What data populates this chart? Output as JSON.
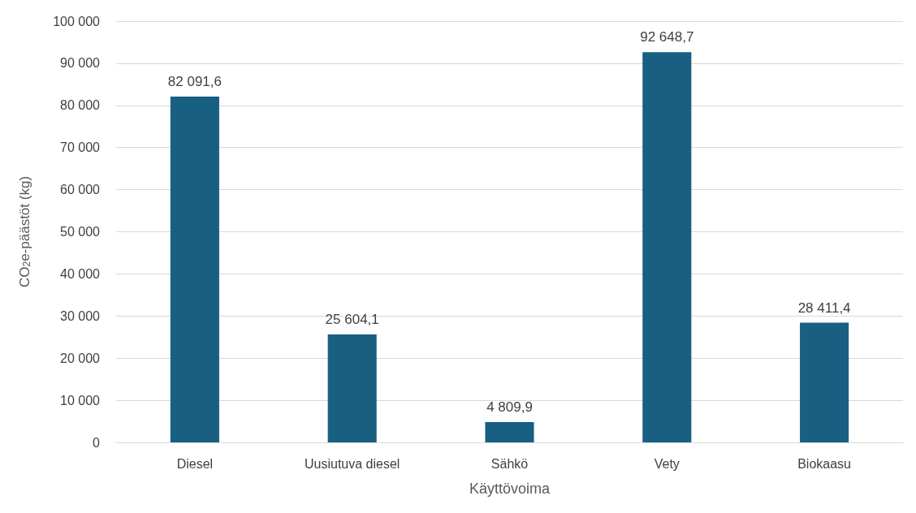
{
  "chart_data": {
    "type": "bar",
    "xlabel": "Käyttövoima",
    "ylabel": "CO$_{2}$e-päästöt (kg)",
    "categories": [
      "Diesel",
      "Uusiutuva diesel",
      "Sähkö",
      "Vety",
      "Biokaasu"
    ],
    "values": [
      82091.6,
      25604.1,
      4809.9,
      92648.7,
      28411.4
    ],
    "value_labels": [
      "82 091,6",
      "25 604,1",
      "4 809,9",
      "92 648,7",
      "28 411,4"
    ],
    "color": "#185f82",
    "ylim": [
      0,
      100000
    ],
    "yticks": [
      {
        "value": 0,
        "label": "0"
      },
      {
        "value": 10000,
        "label": "10 000"
      },
      {
        "value": 20000,
        "label": "20 000"
      },
      {
        "value": 30000,
        "label": "30 000"
      },
      {
        "value": 40000,
        "label": "40 000"
      },
      {
        "value": 50000,
        "label": "50 000"
      },
      {
        "value": 60000,
        "label": "60 000"
      },
      {
        "value": 70000,
        "label": "70 000"
      },
      {
        "value": 80000,
        "label": "80 000"
      },
      {
        "value": 90000,
        "label": "90 000"
      },
      {
        "value": 100000,
        "label": "100 000"
      }
    ],
    "grid": "y"
  }
}
